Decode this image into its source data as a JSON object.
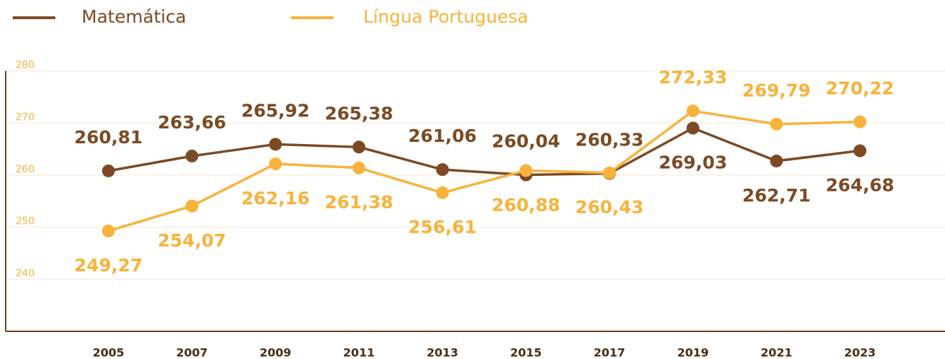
{
  "chart_data": {
    "type": "line",
    "categories": [
      "2005",
      "2007",
      "2009",
      "2011",
      "2013",
      "2015",
      "2017",
      "2019",
      "2021",
      "2023"
    ],
    "series": [
      {
        "name": "Matemática",
        "color": "#7b4a23",
        "values": [
          260.81,
          263.66,
          265.92,
          265.38,
          261.06,
          260.04,
          260.33,
          269.03,
          262.71,
          264.68
        ],
        "value_labels": [
          "260,81",
          "263,66",
          "265,92",
          "265,38",
          "261,06",
          "260,04",
          "260,33",
          "269,03",
          "262,71",
          "264,68"
        ]
      },
      {
        "name": "Língua Portuguesa",
        "color": "#f7b33b",
        "values": [
          249.27,
          254.07,
          262.16,
          261.38,
          256.61,
          260.88,
          260.43,
          272.33,
          269.79,
          270.22
        ],
        "value_labels": [
          "249,27",
          "254,07",
          "262,16",
          "261,38",
          "256,61",
          "260,88",
          "260,43",
          "272,33",
          "269,79",
          "270,22"
        ]
      }
    ],
    "ylim": [
      230,
      280
    ],
    "yticks": [
      240,
      250,
      260,
      270,
      280
    ],
    "grid": true,
    "legend": "top"
  }
}
